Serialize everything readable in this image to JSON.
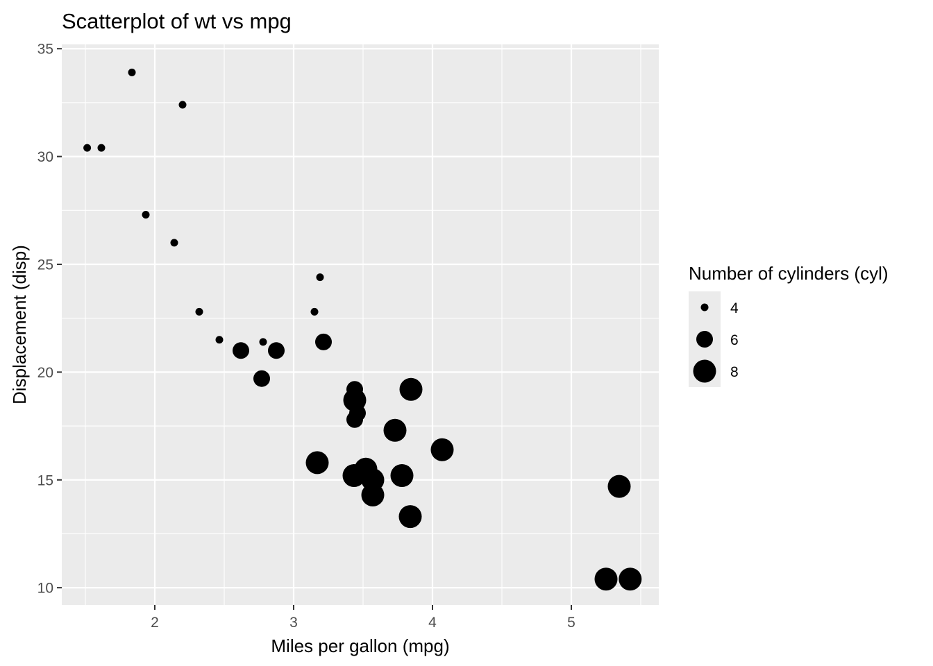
{
  "chart_data": {
    "type": "scatter",
    "title": "Scatterplot of wt vs mpg",
    "xlabel": "Miles per gallon (mpg)",
    "ylabel": "Displacement (disp)",
    "xlim": [
      1.33,
      5.63
    ],
    "ylim": [
      9.2,
      35.2
    ],
    "x_ticks": [
      2,
      3,
      4,
      5
    ],
    "y_ticks": [
      10,
      15,
      20,
      25,
      30,
      35
    ],
    "grid": true,
    "legend": {
      "title": "Number of cylinders (cyl)",
      "placement": "right",
      "entries": [
        {
          "label": "4",
          "size": 4
        },
        {
          "label": "6",
          "size": 6
        },
        {
          "label": "8",
          "size": 8
        }
      ]
    },
    "points": [
      {
        "x": 2.62,
        "y": 21.0,
        "size": 6
      },
      {
        "x": 2.875,
        "y": 21.0,
        "size": 6
      },
      {
        "x": 2.32,
        "y": 22.8,
        "size": 4
      },
      {
        "x": 3.215,
        "y": 21.4,
        "size": 6
      },
      {
        "x": 3.44,
        "y": 18.7,
        "size": 8
      },
      {
        "x": 3.46,
        "y": 18.1,
        "size": 6
      },
      {
        "x": 3.57,
        "y": 14.3,
        "size": 8
      },
      {
        "x": 3.19,
        "y": 24.4,
        "size": 4
      },
      {
        "x": 3.15,
        "y": 22.8,
        "size": 4
      },
      {
        "x": 3.44,
        "y": 19.2,
        "size": 6
      },
      {
        "x": 3.44,
        "y": 17.8,
        "size": 6
      },
      {
        "x": 4.07,
        "y": 16.4,
        "size": 8
      },
      {
        "x": 3.73,
        "y": 17.3,
        "size": 8
      },
      {
        "x": 3.78,
        "y": 15.2,
        "size": 8
      },
      {
        "x": 5.25,
        "y": 10.4,
        "size": 8
      },
      {
        "x": 5.424,
        "y": 10.4,
        "size": 8
      },
      {
        "x": 5.345,
        "y": 14.7,
        "size": 8
      },
      {
        "x": 2.2,
        "y": 32.4,
        "size": 4
      },
      {
        "x": 1.615,
        "y": 30.4,
        "size": 4
      },
      {
        "x": 1.835,
        "y": 33.9,
        "size": 4
      },
      {
        "x": 2.465,
        "y": 21.5,
        "size": 4
      },
      {
        "x": 3.52,
        "y": 15.5,
        "size": 8
      },
      {
        "x": 3.435,
        "y": 15.2,
        "size": 8
      },
      {
        "x": 3.84,
        "y": 13.3,
        "size": 8
      },
      {
        "x": 3.845,
        "y": 19.2,
        "size": 8
      },
      {
        "x": 1.935,
        "y": 27.3,
        "size": 4
      },
      {
        "x": 2.14,
        "y": 26.0,
        "size": 4
      },
      {
        "x": 1.513,
        "y": 30.4,
        "size": 4
      },
      {
        "x": 3.17,
        "y": 15.8,
        "size": 8
      },
      {
        "x": 2.77,
        "y": 19.7,
        "size": 6
      },
      {
        "x": 3.57,
        "y": 15.0,
        "size": 8
      },
      {
        "x": 2.78,
        "y": 21.4,
        "size": 4
      }
    ],
    "colors": {
      "panel_background": "#ebebeb",
      "grid": "#ffffff",
      "point": "#000000",
      "tick_label": "#4d4d4d"
    }
  }
}
